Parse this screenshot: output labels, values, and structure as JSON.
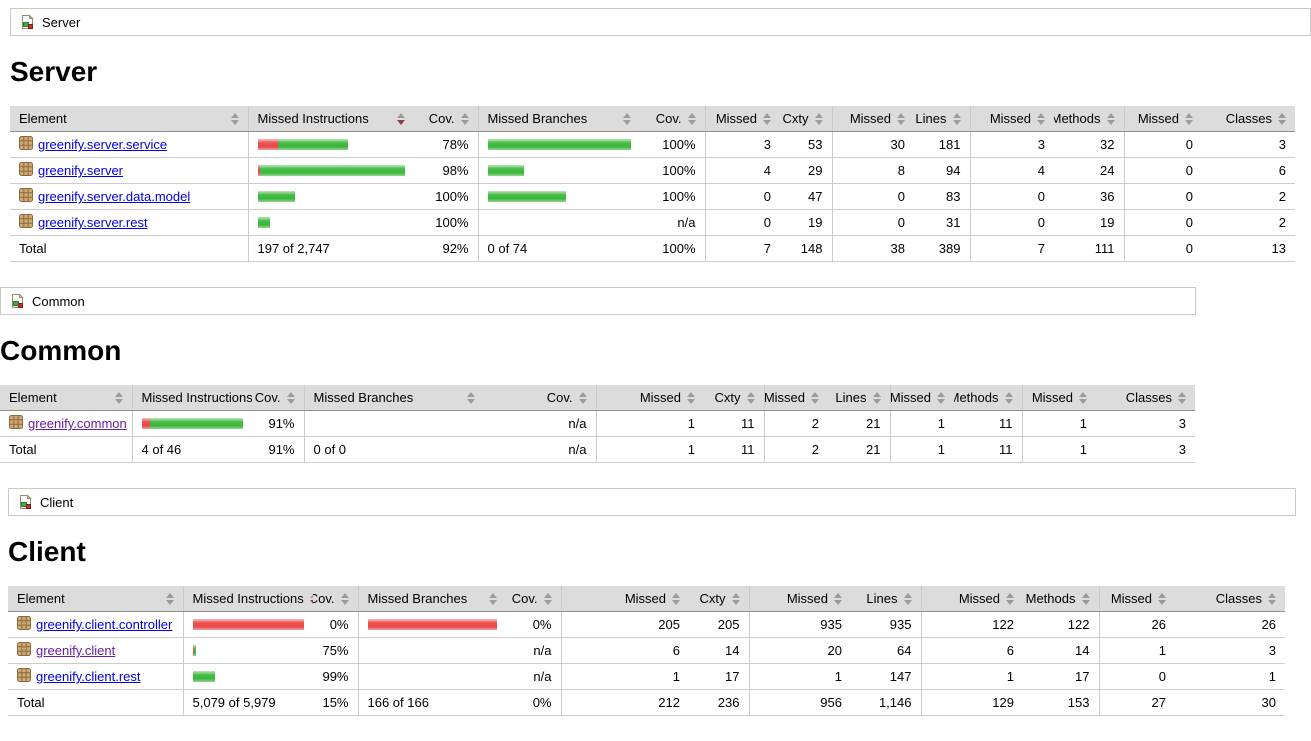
{
  "headers": [
    {
      "label": "Element"
    },
    {
      "label": "Missed Instructions",
      "sorted": "desc"
    },
    {
      "label": "Cov."
    },
    {
      "label": "Missed Branches"
    },
    {
      "label": "Cov."
    },
    {
      "label": "Missed"
    },
    {
      "label": "Cxty"
    },
    {
      "label": "Missed"
    },
    {
      "label": "Lines"
    },
    {
      "label": "Missed"
    },
    {
      "label": "Methods"
    },
    {
      "label": "Missed"
    },
    {
      "label": "Classes"
    }
  ],
  "colors": {
    "bar_green": "#3eb43e",
    "bar_red": "#e84848",
    "link_blue": "#0000e0",
    "link_visited_purple": "#681da8",
    "header_bg": "#dcdcdc"
  },
  "sections": [
    {
      "breadcrumb": "Server",
      "title": "Server",
      "rows": [
        {
          "element": "greenify.server.service",
          "instr_bar": {
            "red": 20,
            "green": 70
          },
          "instr_cov": "78%",
          "branch_bar": {
            "green": 152
          },
          "branch_cov": "100%",
          "missed_cxty": "3",
          "cxty": "53",
          "missed_lines": "30",
          "lines": "181",
          "missed_methods": "3",
          "methods": "32",
          "missed_classes": "0",
          "classes": "3"
        },
        {
          "element": "greenify.server",
          "instr_bar": {
            "red": 2,
            "green": 146
          },
          "instr_cov": "98%",
          "branch_bar": {
            "green": 36
          },
          "branch_cov": "100%",
          "missed_cxty": "4",
          "cxty": "29",
          "missed_lines": "8",
          "lines": "94",
          "missed_methods": "4",
          "methods": "24",
          "missed_classes": "0",
          "classes": "6"
        },
        {
          "element": "greenify.server.data.model",
          "instr_bar": {
            "green": 37
          },
          "instr_cov": "100%",
          "branch_bar": {
            "green": 78
          },
          "branch_cov": "100%",
          "missed_cxty": "0",
          "cxty": "47",
          "missed_lines": "0",
          "lines": "83",
          "missed_methods": "0",
          "methods": "36",
          "missed_classes": "0",
          "classes": "2"
        },
        {
          "element": "greenify.server.rest",
          "instr_bar": {
            "green": 12
          },
          "instr_cov": "100%",
          "branch_bar": {},
          "branch_cov": "n/a",
          "missed_cxty": "0",
          "cxty": "19",
          "missed_lines": "0",
          "lines": "31",
          "missed_methods": "0",
          "methods": "19",
          "missed_classes": "0",
          "classes": "2"
        }
      ],
      "total": {
        "label": "Total",
        "instr": "197 of 2,747",
        "instr_cov": "92%",
        "branch": "0 of 74",
        "branch_cov": "100%",
        "missed_cxty": "7",
        "cxty": "148",
        "missed_lines": "38",
        "lines": "389",
        "missed_methods": "7",
        "methods": "111",
        "missed_classes": "0",
        "classes": "13"
      }
    },
    {
      "breadcrumb": "Common",
      "title": "Common",
      "rows": [
        {
          "element": "greenify.common",
          "visited": true,
          "instr_bar": {
            "red": 10,
            "green": 103
          },
          "instr_cov": "91%",
          "branch_bar": {},
          "branch_cov": "n/a",
          "missed_cxty": "1",
          "cxty": "11",
          "missed_lines": "2",
          "lines": "21",
          "missed_methods": "1",
          "methods": "11",
          "missed_classes": "1",
          "classes": "3"
        }
      ],
      "total": {
        "label": "Total",
        "instr": "4 of 46",
        "instr_cov": "91%",
        "branch": "0 of 0",
        "branch_cov": "n/a",
        "missed_cxty": "1",
        "cxty": "11",
        "missed_lines": "2",
        "lines": "21",
        "missed_methods": "1",
        "methods": "11",
        "missed_classes": "1",
        "classes": "3"
      }
    },
    {
      "breadcrumb": "Client",
      "title": "Client",
      "rows": [
        {
          "element": "greenify.client.controller",
          "instr_bar": {
            "red": 119
          },
          "instr_cov": "0%",
          "branch_bar": {
            "red": 149
          },
          "branch_cov": "0%",
          "missed_cxty": "205",
          "cxty": "205",
          "missed_lines": "935",
          "lines": "935",
          "missed_methods": "122",
          "methods": "122",
          "missed_classes": "26",
          "classes": "26"
        },
        {
          "element": "greenify.client",
          "visited": true,
          "instr_bar": {
            "red": 1,
            "green": 2
          },
          "instr_cov": "75%",
          "branch_bar": {},
          "branch_cov": "n/a",
          "missed_cxty": "6",
          "cxty": "14",
          "missed_lines": "20",
          "lines": "64",
          "missed_methods": "6",
          "methods": "14",
          "missed_classes": "1",
          "classes": "3"
        },
        {
          "element": "greenify.client.rest",
          "instr_bar": {
            "green": 22
          },
          "instr_cov": "99%",
          "branch_bar": {},
          "branch_cov": "n/a",
          "missed_cxty": "1",
          "cxty": "17",
          "missed_lines": "1",
          "lines": "147",
          "missed_methods": "1",
          "methods": "17",
          "missed_classes": "0",
          "classes": "1"
        }
      ],
      "total": {
        "label": "Total",
        "instr": "5,079 of 5,979",
        "instr_cov": "15%",
        "branch": "166 of 166",
        "branch_cov": "0%",
        "missed_cxty": "212",
        "cxty": "236",
        "missed_lines": "956",
        "lines": "1,146",
        "missed_methods": "129",
        "methods": "153",
        "missed_classes": "27",
        "classes": "30"
      }
    }
  ]
}
